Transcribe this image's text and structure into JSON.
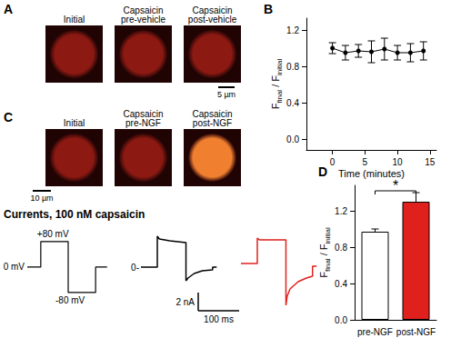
{
  "panel_labels": [
    "A",
    "B",
    "C",
    "D"
  ],
  "image_rows": [
    {
      "images": [
        {
          "title": [
            "Initial"
          ],
          "color": "#8c1a12"
        },
        {
          "title": [
            "Capsaicin",
            "pre-vehicle"
          ],
          "color": "#8c1a12"
        },
        {
          "title": [
            "Capsaicin",
            "post-vehicle"
          ],
          "color": "#8c1a12"
        }
      ],
      "scale_bar": "5 µm"
    },
    {
      "images": [
        {
          "title": [
            "Initial"
          ],
          "color": "#8c1a12"
        },
        {
          "title": [
            "Capsaicin",
            "pre-NGF"
          ],
          "color": "#8c1a12"
        },
        {
          "title": [
            "Capsaicin",
            "post-NGF"
          ],
          "color": "#f08030"
        }
      ],
      "scale_bar": "10 µm"
    }
  ],
  "currents_title": "Currents, 100 nM capsaicin",
  "chart_data": [
    {
      "type": "line",
      "x": [
        0,
        2,
        4,
        6,
        8,
        10,
        12,
        14
      ],
      "values": [
        1.0,
        0.95,
        0.97,
        0.96,
        0.99,
        0.95,
        0.95,
        0.97
      ],
      "errors": [
        0.06,
        0.08,
        0.07,
        0.12,
        0.12,
        0.08,
        0.1,
        0.1
      ],
      "color": "#000000",
      "marker": "circle",
      "xlim": [
        -4,
        16
      ],
      "ylim": [
        -0.12,
        1.33
      ],
      "xticks": [
        0,
        5,
        10,
        15
      ],
      "yticks": [
        {
          "value": 0,
          "label": "0.0"
        },
        {
          "value": 0.4,
          "label": "0.4"
        },
        {
          "value": 0.8,
          "label": "0.8"
        },
        {
          "value": 1.2,
          "label": "1.2"
        }
      ],
      "x_label": "Time (minutes)",
      "y_label": [
        {
          "text": "F"
        },
        {
          "text": "final",
          "sub": true
        },
        {
          "text": " / F"
        },
        {
          "text": "initial",
          "sub": true
        }
      ]
    },
    {
      "type": "line",
      "x": [
        0,
        33,
        33,
        100,
        100,
        167,
        167,
        195
      ],
      "values": [
        0,
        0,
        80,
        80,
        -80,
        -80,
        0,
        0
      ],
      "color": "#000000",
      "xlim": [
        0,
        200
      ],
      "ylim": [
        -103,
        111
      ],
      "tick_labels": false,
      "annotations": [
        {
          "text": "+80 mV",
          "y": 80
        },
        {
          "text": "0 mV",
          "y": 0
        },
        {
          "text": "-80 mV",
          "y": -80
        }
      ]
    },
    {
      "type": "line",
      "x": [
        0,
        40,
        40,
        45,
        70,
        110,
        110,
        115,
        130,
        150,
        175,
        175,
        185
      ],
      "values": [
        0,
        0,
        3.4,
        3.1,
        2.9,
        2.7,
        -1.5,
        -1.2,
        -0.7,
        -0.4,
        -0.3,
        0,
        0
      ],
      "color": "#000000",
      "xlim": [
        0,
        322
      ],
      "ylim": [
        -5.1,
        4.4
      ],
      "tick_labels": false,
      "annotations": [
        {
          "text": "0-",
          "y": 0
        }
      ],
      "scale_bar": {
        "y": 2,
        "y_label": "2 nA",
        "x": 100,
        "x_label": "100 ms"
      }
    },
    {
      "type": "line",
      "x": [
        0,
        40,
        40,
        45,
        110,
        110,
        113,
        120,
        140,
        160,
        175,
        175,
        185
      ],
      "values": [
        0.4,
        0.4,
        3.2,
        3.0,
        3.0,
        -4.2,
        -3.2,
        -2.4,
        -1.6,
        -1.2,
        -1.0,
        0.1,
        0.1
      ],
      "color": "#e0201c",
      "xlim": [
        0,
        189
      ],
      "ylim": [
        -5.1,
        4.4
      ],
      "tick_labels": false
    },
    {
      "type": "bar",
      "categories": [
        "pre-NGF",
        "post-NGF"
      ],
      "values": [
        0.97,
        1.3
      ],
      "errors": [
        0.03,
        0.1
      ],
      "colors": [
        "#ffffff",
        "#e0201c"
      ],
      "ylim": [
        0,
        1.48
      ],
      "yticks": [
        {
          "value": 0,
          "label": "0.0"
        },
        {
          "value": 0.4,
          "label": "0.4"
        },
        {
          "value": 0.8,
          "label": "0.8"
        },
        {
          "value": 1.2,
          "label": "1.2"
        }
      ],
      "y_label": [
        {
          "text": "F"
        },
        {
          "text": "final",
          "sub": true
        },
        {
          "text": " / F"
        },
        {
          "text": "initial",
          "sub": true
        }
      ],
      "significance": {
        "label": "*",
        "value": 1.42
      }
    }
  ]
}
